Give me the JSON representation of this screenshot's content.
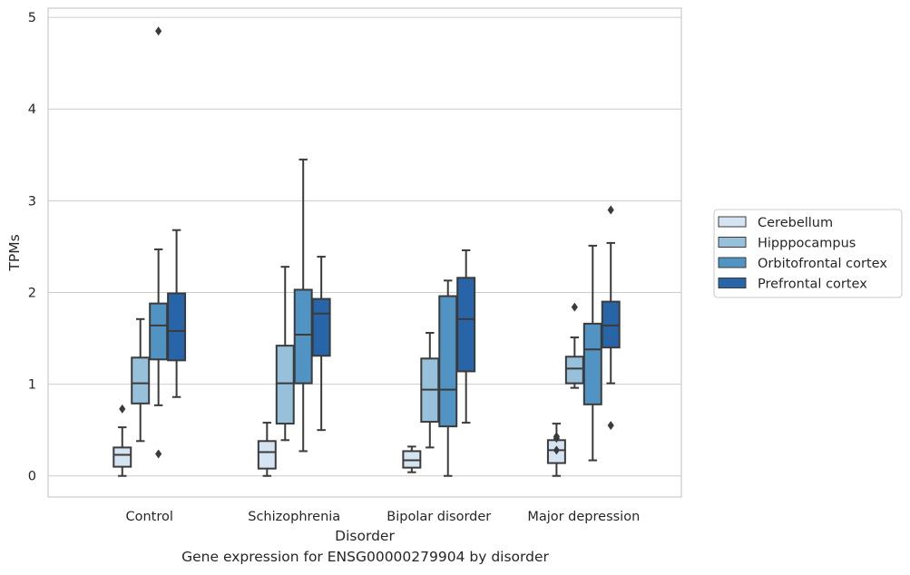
{
  "chart_data": {
    "type": "box",
    "title": "",
    "caption": "Gene expression for ENSG00000279904 by disorder",
    "xlabel": "Disorder",
    "ylabel": "TPMs",
    "ylim": [
      -0.23,
      5.1
    ],
    "yticks": [
      "0",
      "1",
      "2",
      "3",
      "4",
      "5"
    ],
    "categories": [
      "Control",
      "Schizophrenia",
      "Bipolar disorder",
      "Major depression"
    ],
    "grid": "horizontal",
    "legend_position": "right",
    "series": [
      {
        "name": "Cerebellum",
        "color": "#d5e4f2",
        "boxes": [
          {
            "whislo": 0.0,
            "q1": 0.1,
            "med": 0.23,
            "q3": 0.31,
            "whishi": 0.53,
            "fliers": [
              0.73
            ]
          },
          {
            "whislo": 0.0,
            "q1": 0.08,
            "med": 0.26,
            "q3": 0.38,
            "whishi": 0.58,
            "fliers": []
          },
          {
            "whislo": 0.04,
            "q1": 0.09,
            "med": 0.17,
            "q3": 0.27,
            "whishi": 0.32,
            "fliers": []
          },
          {
            "whislo": 0.0,
            "q1": 0.14,
            "med": 0.28,
            "q3": 0.39,
            "whishi": 0.57,
            "fliers": [
              0.28,
              0.41,
              0.43
            ]
          }
        ]
      },
      {
        "name": "Hipppocampus",
        "color": "#97c0db",
        "boxes": [
          {
            "whislo": 0.38,
            "q1": 0.79,
            "med": 1.01,
            "q3": 1.29,
            "whishi": 1.71,
            "fliers": []
          },
          {
            "whislo": 0.39,
            "q1": 0.57,
            "med": 1.01,
            "q3": 1.42,
            "whishi": 2.28,
            "fliers": []
          },
          {
            "whislo": 0.31,
            "q1": 0.59,
            "med": 0.94,
            "q3": 1.28,
            "whishi": 1.56,
            "fliers": []
          },
          {
            "whislo": 0.96,
            "q1": 1.01,
            "med": 1.17,
            "q3": 1.3,
            "whishi": 1.51,
            "fliers": [
              1.84
            ]
          }
        ]
      },
      {
        "name": "Orbitofrontal cortex",
        "color": "#5193c3",
        "boxes": [
          {
            "whislo": 0.77,
            "q1": 1.27,
            "med": 1.64,
            "q3": 1.88,
            "whishi": 2.47,
            "fliers": [
              0.24,
              4.85
            ]
          },
          {
            "whislo": 0.27,
            "q1": 1.01,
            "med": 1.54,
            "q3": 2.03,
            "whishi": 3.45,
            "fliers": []
          },
          {
            "whislo": 0.0,
            "q1": 0.54,
            "med": 0.94,
            "q3": 1.96,
            "whishi": 2.13,
            "fliers": []
          },
          {
            "whislo": 0.17,
            "q1": 0.78,
            "med": 1.38,
            "q3": 1.66,
            "whishi": 2.51,
            "fliers": []
          }
        ]
      },
      {
        "name": "Prefrontal cortex",
        "color": "#2865a8",
        "boxes": [
          {
            "whislo": 0.86,
            "q1": 1.26,
            "med": 1.58,
            "q3": 1.99,
            "whishi": 2.68,
            "fliers": []
          },
          {
            "whislo": 0.5,
            "q1": 1.31,
            "med": 1.77,
            "q3": 1.93,
            "whishi": 2.39,
            "fliers": []
          },
          {
            "whislo": 0.58,
            "q1": 1.14,
            "med": 1.71,
            "q3": 2.16,
            "whishi": 2.46,
            "fliers": []
          },
          {
            "whislo": 1.01,
            "q1": 1.4,
            "med": 1.64,
            "q3": 1.9,
            "whishi": 2.54,
            "fliers": [
              0.55,
              2.9
            ]
          }
        ]
      }
    ]
  }
}
